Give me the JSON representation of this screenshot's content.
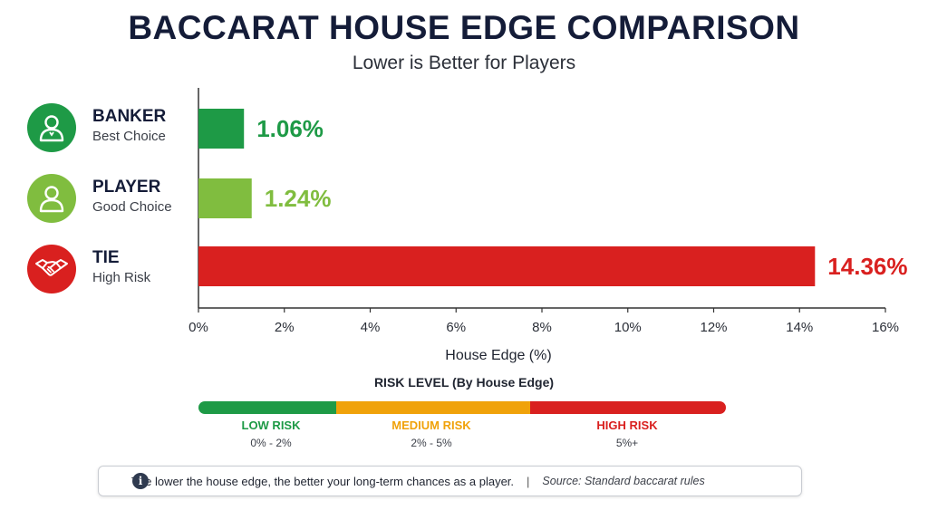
{
  "header": {
    "title": "BACCARAT HOUSE EDGE COMPARISON",
    "subtitle": "Lower is Better for Players"
  },
  "chart_data": {
    "type": "bar",
    "orientation": "horizontal",
    "categories": [
      "BANKER",
      "PLAYER",
      "TIE"
    ],
    "descriptions": [
      "Best Choice",
      "Good Choice",
      "High Risk"
    ],
    "values": [
      1.06,
      1.24,
      14.36
    ],
    "value_labels": [
      "1.06%",
      "1.24%",
      "14.36%"
    ],
    "colors": [
      "#1e9a46",
      "#80bd3f",
      "#d9201f"
    ],
    "icons": [
      "user-icon",
      "user-icon",
      "handshake-icon"
    ],
    "xlabel": "House Edge (%)",
    "xlim": [
      0,
      16
    ],
    "xticks": [
      0,
      2,
      4,
      6,
      8,
      10,
      12,
      14,
      16
    ],
    "xtick_labels": [
      "0%",
      "2%",
      "4%",
      "6%",
      "8%",
      "10%",
      "12%",
      "14%",
      "16%"
    ],
    "grid": false,
    "legend": "none"
  },
  "risk": {
    "title": "RISK LEVEL (By House Edge)",
    "levels": [
      {
        "label": "LOW RISK",
        "range": "0% - 2%",
        "color": "#1e9a46"
      },
      {
        "label": "MEDIUM RISK",
        "range": "2% - 5%",
        "color": "#f0a20a"
      },
      {
        "label": "HIGH RISK",
        "range": "5%+",
        "color": "#d9201f"
      }
    ]
  },
  "note": {
    "text": "The lower the house edge, the better your long-term chances as a player.",
    "separator": "|",
    "source": "Source: Standard baccarat rules"
  }
}
